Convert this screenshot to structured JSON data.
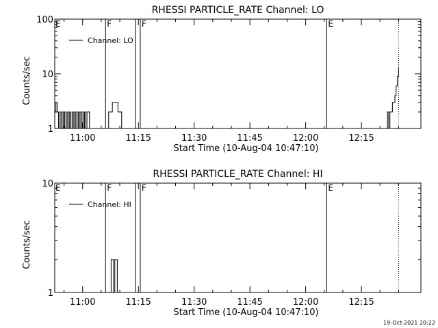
{
  "footer_timestamp": "19-Oct-2021 20:22",
  "chart_data": [
    {
      "type": "line",
      "title": "RHESSI PARTICLE_RATE Channel: LO",
      "xlabel": "Start Time (10-Aug-04 10:47:10)",
      "ylabel": "Counts/sec",
      "yscale": "log",
      "ylim": [
        1,
        100
      ],
      "xlim": [
        "10:52:30",
        "12:31:00"
      ],
      "y_ticks": [
        {
          "value": 1,
          "label": "1"
        },
        {
          "value": 10,
          "label": "10"
        },
        {
          "value": 100,
          "label": "100"
        }
      ],
      "x_ticks": [
        {
          "value": "11:00",
          "label": "11:00"
        },
        {
          "value": "11:15",
          "label": "11:15"
        },
        {
          "value": "11:30",
          "label": "11:30"
        },
        {
          "value": "11:45",
          "label": "11:45"
        },
        {
          "value": "12:00",
          "label": "12:00"
        },
        {
          "value": "12:15",
          "label": "12:15"
        }
      ],
      "legend": {
        "label": "Channel: LO",
        "placement": "top-left"
      },
      "event_lines": [
        {
          "time": "11:06:10",
          "label": "F",
          "style": "solid"
        },
        {
          "time": "11:14:10",
          "label": "",
          "style": "solid"
        },
        {
          "time": "11:15:30",
          "label": "F",
          "style": "solid"
        },
        {
          "time": "12:05:40",
          "label": "E",
          "style": "solid"
        },
        {
          "time": "12:25:00",
          "label": "",
          "style": "dotted"
        }
      ],
      "edge_labels": [
        {
          "time": "10:52:30",
          "label": "E"
        }
      ],
      "series": [
        {
          "segments": [
            [
              [
                "10:52:30",
                2
              ],
              [
                "10:52:50",
                3
              ],
              [
                "10:53:10",
                2
              ],
              [
                "10:53:30",
                1
              ],
              [
                "10:53:50",
                2
              ],
              [
                "10:54:10",
                1
              ],
              [
                "10:54:30",
                2
              ],
              [
                "10:54:50",
                1
              ],
              [
                "10:55:10",
                2
              ],
              [
                "10:55:30",
                1
              ],
              [
                "10:55:50",
                2
              ],
              [
                "10:56:10",
                1
              ],
              [
                "10:56:30",
                2
              ],
              [
                "10:56:50",
                1
              ],
              [
                "10:57:10",
                2
              ],
              [
                "10:57:30",
                1
              ],
              [
                "10:57:50",
                2
              ],
              [
                "10:58:10",
                1
              ],
              [
                "10:58:30",
                2
              ],
              [
                "10:58:50",
                1
              ],
              [
                "10:59:10",
                2
              ],
              [
                "10:59:30",
                1
              ],
              [
                "10:59:50",
                2
              ],
              [
                "11:00:10",
                1
              ],
              [
                "11:00:30",
                2
              ],
              [
                "11:00:50",
                1
              ],
              [
                "11:01:10",
                2
              ],
              [
                "11:01:30",
                2
              ],
              [
                "11:01:50",
                1
              ]
            ],
            [
              [
                "11:06:30",
                1
              ],
              [
                "11:07:00",
                2
              ],
              [
                "11:07:30",
                2
              ],
              [
                "11:08:00",
                3
              ],
              [
                "11:08:30",
                3
              ],
              [
                "11:09:00",
                3
              ],
              [
                "11:09:30",
                2
              ],
              [
                "11:10:00",
                2
              ],
              [
                "11:10:30",
                1
              ]
            ],
            [
              [
                "12:21:30",
                1
              ],
              [
                "12:22:00",
                2
              ],
              [
                "12:22:20",
                1
              ],
              [
                "12:22:40",
                2
              ],
              [
                "12:23:00",
                2
              ],
              [
                "12:23:20",
                3
              ],
              [
                "12:23:40",
                3
              ],
              [
                "12:24:00",
                4
              ],
              [
                "12:24:20",
                6
              ],
              [
                "12:24:40",
                9
              ],
              [
                "12:25:00",
                13
              ]
            ]
          ]
        }
      ]
    },
    {
      "type": "line",
      "title": "RHESSI PARTICLE_RATE Channel: HI",
      "xlabel": "Start Time (10-Aug-04 10:47:10)",
      "ylabel": "Counts/sec",
      "yscale": "log",
      "ylim": [
        1,
        10
      ],
      "xlim": [
        "10:52:30",
        "12:31:00"
      ],
      "y_ticks": [
        {
          "value": 1,
          "label": "1"
        },
        {
          "value": 10,
          "label": "10"
        }
      ],
      "x_ticks": [
        {
          "value": "11:00",
          "label": "11:00"
        },
        {
          "value": "11:15",
          "label": "11:15"
        },
        {
          "value": "11:30",
          "label": "11:30"
        },
        {
          "value": "11:45",
          "label": "11:45"
        },
        {
          "value": "12:00",
          "label": "12:00"
        },
        {
          "value": "12:15",
          "label": "12:15"
        }
      ],
      "legend": {
        "label": "Channel: HI",
        "placement": "top-left"
      },
      "event_lines": [
        {
          "time": "11:06:10",
          "label": "F",
          "style": "solid"
        },
        {
          "time": "11:14:10",
          "label": "",
          "style": "solid"
        },
        {
          "time": "11:15:30",
          "label": "F",
          "style": "solid"
        },
        {
          "time": "12:05:40",
          "label": "E",
          "style": "solid"
        },
        {
          "time": "12:25:00",
          "label": "",
          "style": "dotted"
        }
      ],
      "edge_labels": [
        {
          "time": "10:52:30",
          "label": "E"
        }
      ],
      "series": [
        {
          "segments": [
            [
              [
                "11:07:20",
                1
              ],
              [
                "11:07:40",
                2
              ],
              [
                "11:08:00",
                2
              ],
              [
                "11:08:20",
                1
              ],
              [
                "11:08:40",
                2
              ],
              [
                "11:09:00",
                2
              ],
              [
                "11:09:20",
                1
              ]
            ]
          ]
        }
      ]
    }
  ]
}
